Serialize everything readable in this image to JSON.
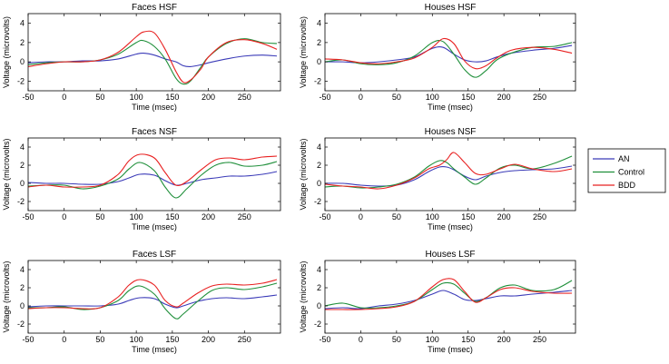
{
  "chart_data": {
    "type": "line",
    "xlim": [
      -50,
      300
    ],
    "ylim": [
      -3,
      5
    ],
    "xticks": [
      -50,
      0,
      50,
      100,
      150,
      200,
      250
    ],
    "yticks": [
      -2,
      0,
      2,
      4
    ],
    "xlabel": "Time (msec)",
    "ylabel": "Voltage (microvolts)",
    "legend": {
      "placement": "right",
      "entries": [
        {
          "name": "AN",
          "color": "#3b3bb8"
        },
        {
          "name": "Control",
          "color": "#1f8f3a"
        },
        {
          "name": "BDD",
          "color": "#e82020"
        }
      ]
    },
    "panels": [
      {
        "title": "Faces HSF",
        "x": [
          -50,
          -25,
          0,
          25,
          50,
          75,
          100,
          110,
          125,
          140,
          155,
          165,
          175,
          190,
          200,
          225,
          250,
          275,
          295
        ],
        "series": [
          {
            "name": "AN",
            "values": [
              -0.1,
              0,
              0,
              0.1,
              0.1,
              0.3,
              0.8,
              0.9,
              0.7,
              0.3,
              0,
              -0.4,
              -0.5,
              -0.3,
              -0.1,
              0.3,
              0.6,
              0.7,
              0.6
            ]
          },
          {
            "name": "Control",
            "values": [
              -0.3,
              -0.1,
              0,
              0,
              0.2,
              0.8,
              2.0,
              2.2,
              1.6,
              0.3,
              -1.7,
              -2.3,
              -2.0,
              -0.5,
              0.5,
              1.9,
              2.4,
              2.0,
              1.9
            ]
          },
          {
            "name": "BDD",
            "values": [
              -0.5,
              -0.2,
              0,
              0,
              0.2,
              1.0,
              2.6,
              3.1,
              3.0,
              1.3,
              -1.0,
              -2.1,
              -1.9,
              -0.7,
              0.5,
              2.0,
              2.3,
              1.9,
              1.3
            ]
          }
        ]
      },
      {
        "title": "Houses HSF",
        "x": [
          -50,
          -25,
          0,
          25,
          50,
          75,
          100,
          115,
          130,
          145,
          160,
          175,
          190,
          210,
          240,
          270,
          295
        ],
        "series": [
          {
            "name": "AN",
            "values": [
              0,
              0,
              -0.1,
              0,
              0.2,
              0.5,
              1.4,
              1.5,
              0.8,
              0.2,
              0,
              0.1,
              0.5,
              0.9,
              1.2,
              1.4,
              1.7
            ]
          },
          {
            "name": "Control",
            "values": [
              0,
              0.2,
              -0.2,
              -0.3,
              -0.1,
              0.6,
              2.0,
              2.1,
              0.8,
              -0.8,
              -1.6,
              -0.9,
              0.2,
              0.9,
              1.5,
              1.6,
              2.0
            ]
          },
          {
            "name": "BDD",
            "values": [
              0.3,
              0.2,
              -0.1,
              -0.2,
              0,
              0.4,
              1.5,
              2.4,
              1.9,
              0.1,
              -0.7,
              -0.4,
              0.4,
              1.2,
              1.5,
              1.3,
              0.9
            ]
          }
        ]
      },
      {
        "title": "Faces NSF",
        "x": [
          -50,
          -25,
          0,
          25,
          50,
          75,
          90,
          105,
          125,
          140,
          155,
          170,
          190,
          210,
          230,
          250,
          275,
          295
        ],
        "series": [
          {
            "name": "AN",
            "values": [
              0.1,
              0,
              0,
              -0.1,
              -0.1,
              0.2,
              0.6,
              1.0,
              0.9,
              0.3,
              -0.2,
              0,
              0.4,
              0.6,
              0.8,
              0.8,
              1.0,
              1.3
            ]
          },
          {
            "name": "Control",
            "values": [
              -0.3,
              -0.2,
              -0.2,
              -0.6,
              -0.3,
              0.5,
              1.6,
              2.3,
              1.4,
              -0.4,
              -1.6,
              -0.6,
              0.9,
              2.0,
              2.3,
              1.9,
              2.0,
              2.4
            ]
          },
          {
            "name": "BDD",
            "values": [
              -0.4,
              -0.2,
              -0.4,
              -0.4,
              -0.2,
              1.0,
              2.5,
              3.2,
              2.8,
              1.2,
              -0.2,
              0.2,
              1.5,
              2.6,
              2.8,
              2.6,
              2.9,
              3.0
            ]
          }
        ]
      },
      {
        "title": "Houses NSF",
        "x": [
          -50,
          -25,
          0,
          25,
          50,
          75,
          95,
          110,
          120,
          130,
          145,
          160,
          175,
          195,
          215,
          240,
          270,
          295
        ],
        "series": [
          {
            "name": "AN",
            "values": [
              0,
              0,
              -0.2,
              -0.3,
              -0.2,
              0.4,
              1.3,
              1.8,
              1.8,
              1.5,
              0.8,
              0.4,
              0.8,
              1.2,
              1.4,
              1.5,
              1.6,
              1.9
            ]
          },
          {
            "name": "Control",
            "values": [
              -0.4,
              -0.3,
              -0.5,
              -0.4,
              -0.1,
              0.7,
              1.9,
              2.5,
              2.3,
              1.6,
              0.7,
              -0.1,
              0.6,
              1.7,
              2.0,
              1.6,
              2.2,
              3.0
            ]
          },
          {
            "name": "BDD",
            "values": [
              -0.1,
              -0.3,
              -0.4,
              -0.6,
              -0.2,
              0.6,
              1.6,
              2.0,
              2.6,
              3.4,
              2.3,
              1.1,
              1.0,
              1.6,
              2.1,
              1.6,
              1.3,
              1.6
            ]
          }
        ]
      },
      {
        "title": "Faces LSF",
        "x": [
          -50,
          -25,
          0,
          25,
          50,
          75,
          90,
          105,
          125,
          140,
          155,
          165,
          185,
          205,
          225,
          250,
          275,
          295
        ],
        "series": [
          {
            "name": "AN",
            "values": [
              -0.1,
              0,
              0,
              0,
              0,
              0.2,
              0.6,
              0.9,
              0.8,
              0.2,
              -0.2,
              0,
              0.5,
              0.8,
              0.9,
              0.8,
              1.0,
              1.2
            ]
          },
          {
            "name": "Control",
            "values": [
              -0.2,
              -0.2,
              -0.1,
              -0.4,
              -0.2,
              0.6,
              1.7,
              2.2,
              1.3,
              -0.3,
              -1.4,
              -0.9,
              0.5,
              1.7,
              2.0,
              1.8,
              2.1,
              2.5
            ]
          },
          {
            "name": "BDD",
            "values": [
              -0.3,
              -0.2,
              -0.2,
              -0.3,
              -0.2,
              1.0,
              2.3,
              2.9,
              2.3,
              0.6,
              -0.1,
              0.3,
              1.4,
              2.2,
              2.4,
              2.3,
              2.5,
              2.9
            ]
          }
        ]
      },
      {
        "title": "Houses LSF",
        "x": [
          -50,
          -25,
          0,
          25,
          50,
          75,
          100,
          115,
          130,
          145,
          160,
          175,
          195,
          215,
          240,
          270,
          295
        ],
        "series": [
          {
            "name": "AN",
            "values": [
              -0.3,
              -0.2,
              -0.3,
              0,
              0.2,
              0.6,
              1.3,
              1.7,
              1.3,
              0.7,
              0.6,
              0.8,
              1.1,
              1.1,
              1.3,
              1.5,
              1.7
            ]
          },
          {
            "name": "Control",
            "values": [
              0,
              0.3,
              -0.2,
              -0.2,
              0,
              0.5,
              1.8,
              2.5,
              2.4,
              1.4,
              0.5,
              0.9,
              2.0,
              2.3,
              1.7,
              1.8,
              2.8
            ]
          },
          {
            "name": "BDD",
            "values": [
              -0.4,
              -0.4,
              -0.4,
              -0.3,
              -0.1,
              0.5,
              2.1,
              2.9,
              2.9,
              1.6,
              0.4,
              0.9,
              1.8,
              2.0,
              1.6,
              1.4,
              1.4
            ]
          }
        ]
      }
    ]
  }
}
